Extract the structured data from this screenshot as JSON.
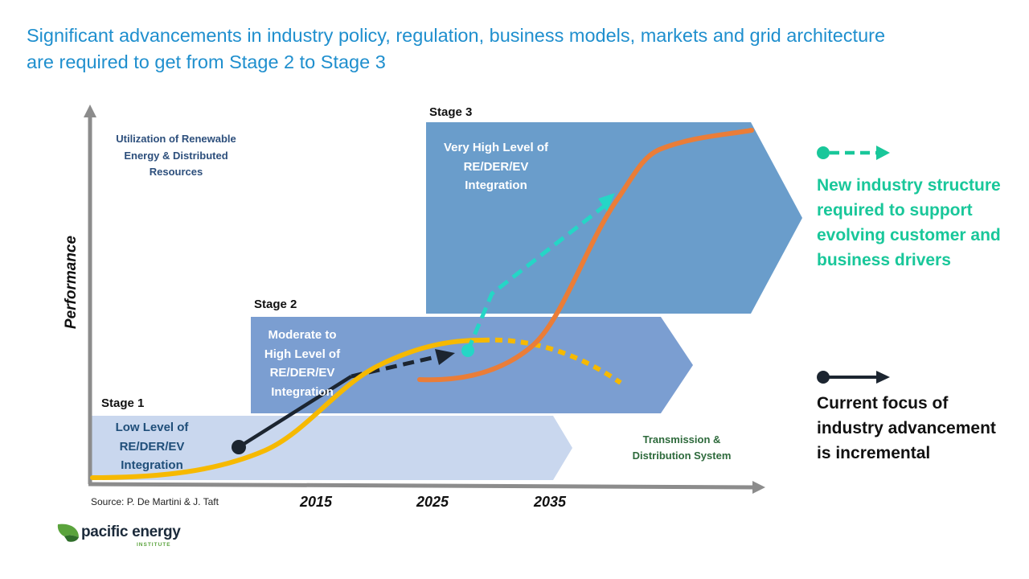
{
  "title": {
    "line1": "Significant advancements in industry policy, regulation, business models, markets and grid architecture",
    "line2": "are required to get from Stage 2 to Stage 3"
  },
  "axes": {
    "y_label": "Performance",
    "y_caption": [
      "Utilization of Renewable",
      "Energy & Distributed",
      "Resources"
    ],
    "x_caption": [
      "Transmission &",
      "Distribution System"
    ],
    "x_ticks": [
      "2015",
      "2025",
      "2035"
    ]
  },
  "stages": [
    {
      "name": "Stage 1",
      "desc": [
        "Low Level of",
        "RE/DER/EV",
        "Integration"
      ],
      "color": "#c9d7ee"
    },
    {
      "name": "Stage 2",
      "desc": [
        "Moderate to",
        "High Level of",
        "RE/DER/EV",
        "Integration"
      ],
      "color": "#7b9ed1"
    },
    {
      "name": "Stage 3",
      "desc": [
        "Very High Level of",
        "RE/DER/EV",
        "Integration"
      ],
      "color": "#6a9dcb"
    }
  ],
  "legend": {
    "new_structure": {
      "lines": [
        "New industry structure",
        "required to support",
        "evolving customer and",
        "business drivers"
      ],
      "color": "#19c79a",
      "arrow_color": "#25d6c6"
    },
    "current_focus": {
      "lines": [
        "Current focus of",
        "industry advancement",
        "is incremental"
      ],
      "color": "#111111",
      "arrow_color": "#1c2530"
    }
  },
  "curve_colors": {
    "yellow": "#f6b900",
    "orange": "#ea7d38"
  },
  "source": "Source: P. De Martini & J. Taft",
  "logo": {
    "name": "pacific energy",
    "sub": "INSTITUTE",
    "leaf_color": "#5aa33c"
  }
}
